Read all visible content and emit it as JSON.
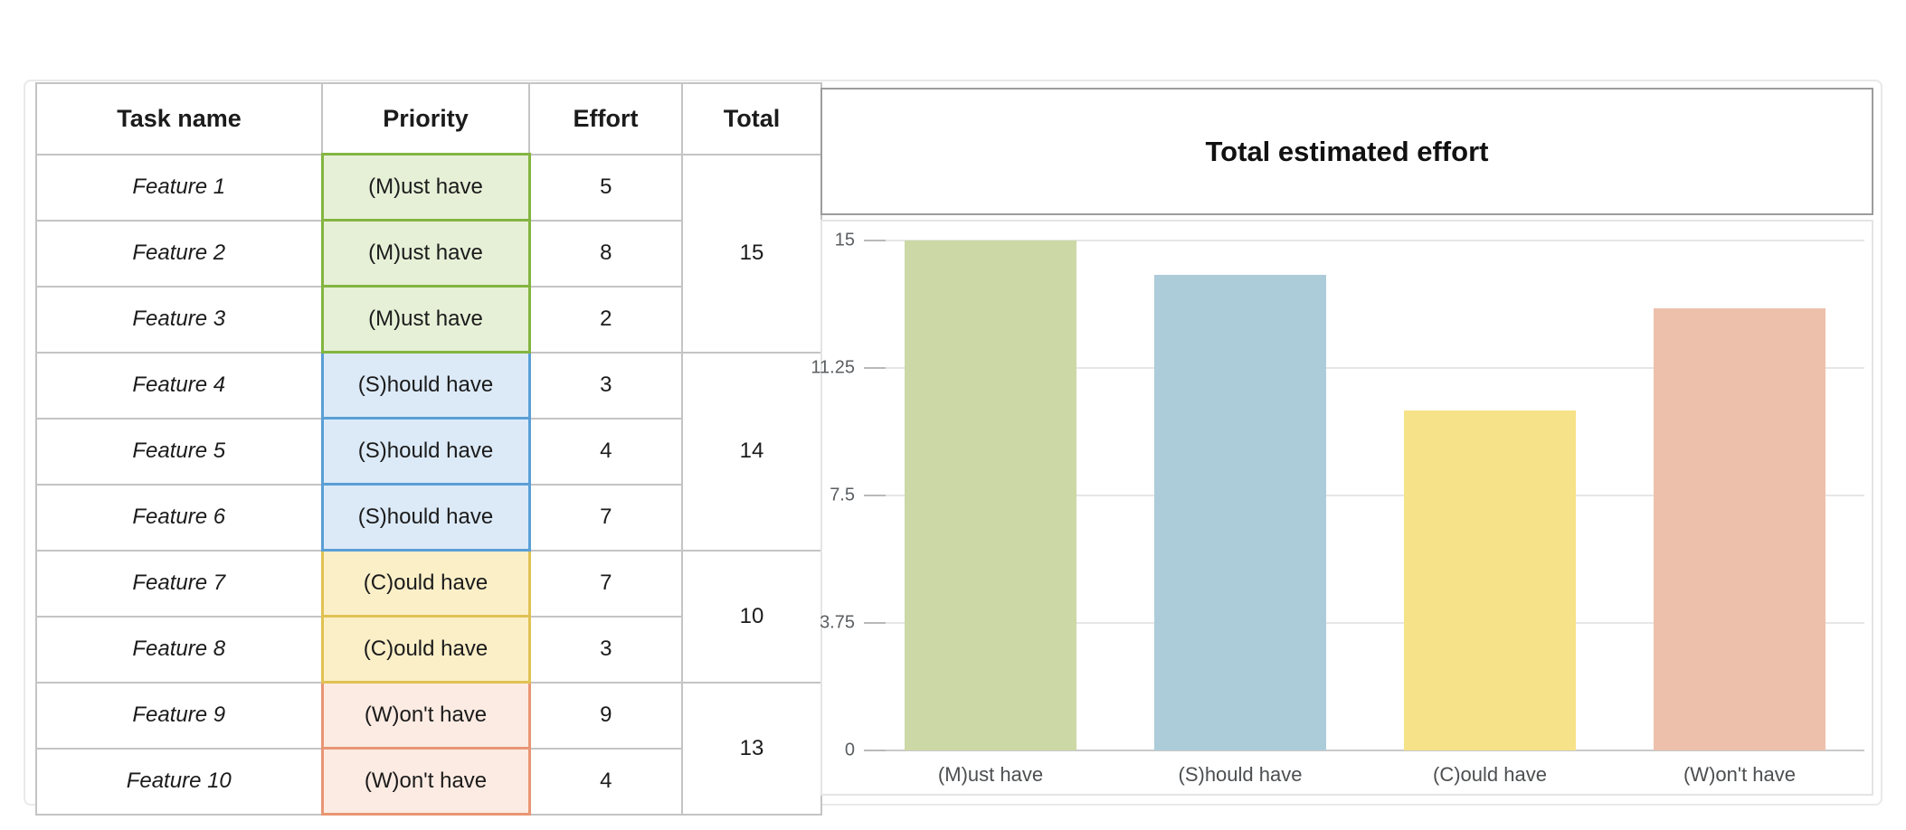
{
  "table": {
    "headers": [
      "Task name",
      "Priority",
      "Effort",
      "Total"
    ],
    "rows": [
      {
        "task": "Feature 1",
        "priority": "(M)ust have",
        "priority_key": "must",
        "effort": "5"
      },
      {
        "task": "Feature 2",
        "priority": "(M)ust have",
        "priority_key": "must",
        "effort": "8"
      },
      {
        "task": "Feature 3",
        "priority": "(M)ust have",
        "priority_key": "must",
        "effort": "2"
      },
      {
        "task": "Feature 4",
        "priority": "(S)hould have",
        "priority_key": "should",
        "effort": "3"
      },
      {
        "task": "Feature 5",
        "priority": "(S)hould have",
        "priority_key": "should",
        "effort": "4"
      },
      {
        "task": "Feature 6",
        "priority": "(S)hould have",
        "priority_key": "should",
        "effort": "7"
      },
      {
        "task": "Feature 7",
        "priority": "(C)ould have",
        "priority_key": "could",
        "effort": "7"
      },
      {
        "task": "Feature 8",
        "priority": "(C)ould have",
        "priority_key": "could",
        "effort": "3"
      },
      {
        "task": "Feature 9",
        "priority": "(W)on't have",
        "priority_key": "wont",
        "effort": "9"
      },
      {
        "task": "Feature 10",
        "priority": "(W)on't have",
        "priority_key": "wont",
        "effort": "4"
      }
    ],
    "total_groups": [
      {
        "start_row": 0,
        "span": 3,
        "total": "15"
      },
      {
        "start_row": 3,
        "span": 3,
        "total": "14"
      },
      {
        "start_row": 6,
        "span": 2,
        "total": "10"
      },
      {
        "start_row": 8,
        "span": 2,
        "total": "13"
      }
    ]
  },
  "chart": {
    "title": "Total estimated effort"
  },
  "chart_data": {
    "type": "bar",
    "title": "Total estimated effort",
    "categories": [
      "(M)ust have",
      "(S)hould have",
      "(C)ould have",
      "(W)on't have"
    ],
    "values": [
      15,
      14,
      10,
      13
    ],
    "xlabel": "",
    "ylabel": "",
    "ylim": [
      0,
      15
    ],
    "yticks": [
      0,
      3.75,
      7.5,
      11.25,
      15
    ],
    "ytick_labels": [
      "0",
      "3.75",
      "7.5",
      "11.25",
      "15"
    ],
    "grid": true,
    "legend": false,
    "bar_colors": [
      "#ccd8a5",
      "#adccd9",
      "#f6e288",
      "#edc0ab"
    ]
  },
  "colors": {
    "priority_must_fill": "#e6f0d7",
    "priority_must_border": "#83b540",
    "priority_should_fill": "#dceaf7",
    "priority_should_border": "#5a9fd6",
    "priority_could_fill": "#fbefc8",
    "priority_could_border": "#e0c253",
    "priority_wont_fill": "#fcebe2",
    "priority_wont_border": "#e89674",
    "table_border": "#c4c4c4",
    "grid_line": "#e6e6e6",
    "axis_line": "#c9c9c9"
  }
}
